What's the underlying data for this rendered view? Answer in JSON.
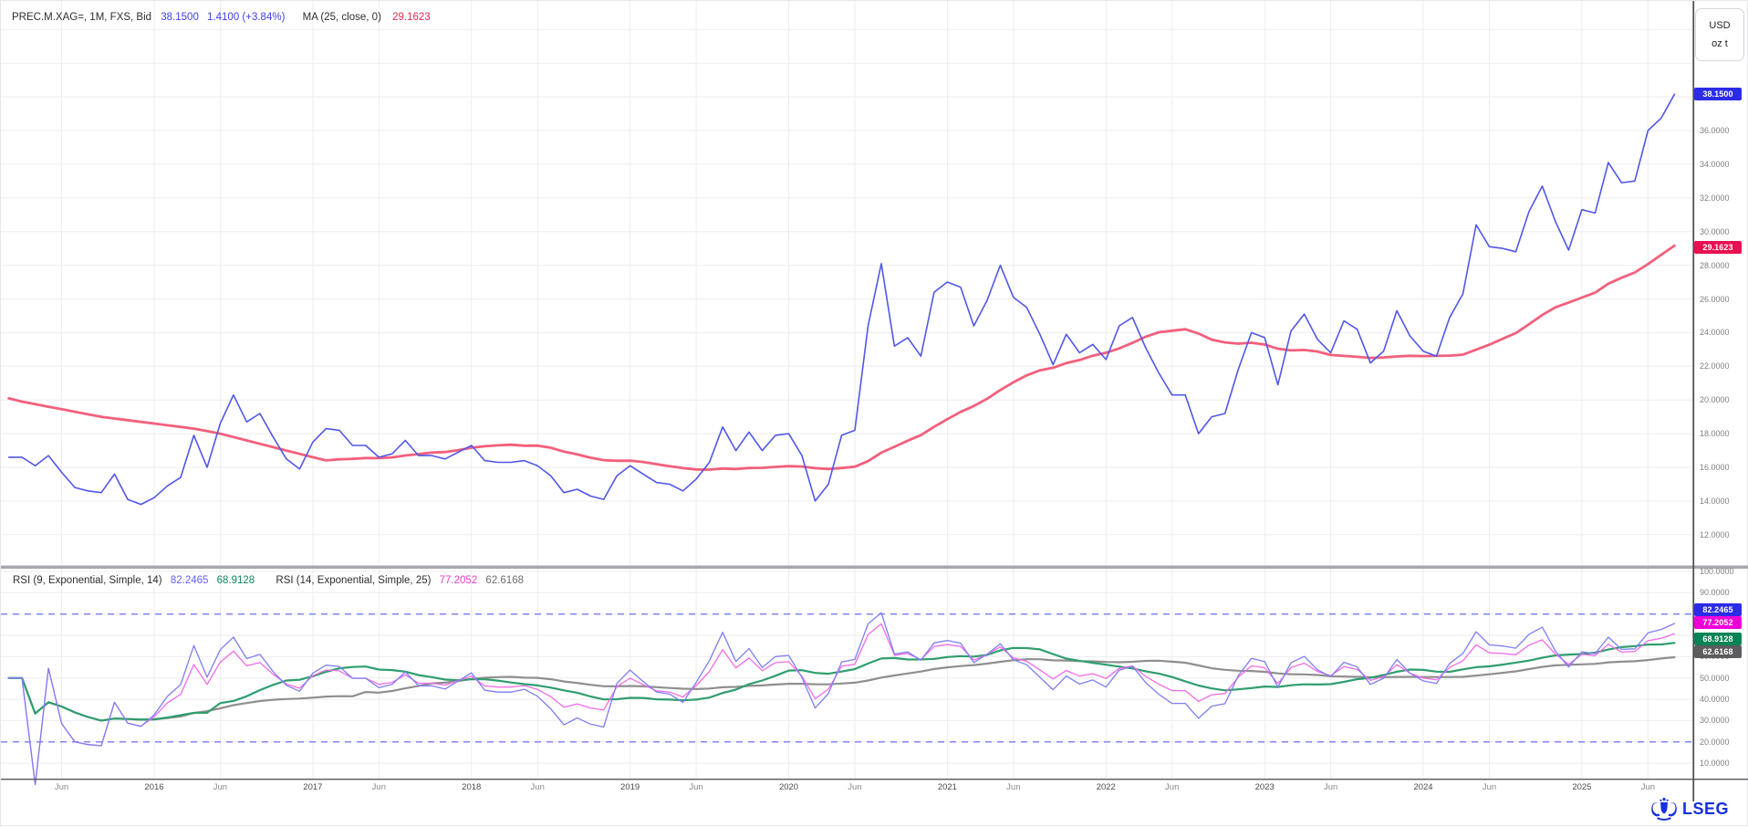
{
  "header": {
    "instrument": "PREC.M.XAG=, 1M, FXS, Bid",
    "last": "38.1500",
    "change": "1.4100 (+3.84%)",
    "ma_label": "MA (25, close, 0)",
    "ma_value": "29.1623"
  },
  "rsi_header": {
    "rsi9_label": "RSI (9, Exponential, Simple, 14)",
    "rsi9_value": "82.2465",
    "rsi9_ma_value": "68.9128",
    "rsi14_label": "RSI (14, Exponential, Simple, 25)",
    "rsi14_value": "77.2052",
    "rsi14_ma_value": "62.6168"
  },
  "badges": {
    "last": "38.1500",
    "ma": "29.1623",
    "rsi9": "82.2465",
    "rsi14": "77.2052",
    "rsi9_ma": "68.9128",
    "rsi14_ma": "62.6168"
  },
  "axis": {
    "unit_top": "USD",
    "unit_bottom": "oz t",
    "price_ticks": [
      "36.0000",
      "34.0000",
      "32.0000",
      "30.0000",
      "28.0000",
      "26.0000",
      "24.0000",
      "22.0000",
      "20.0000",
      "18.0000",
      "16.0000",
      "14.0000",
      "12.0000"
    ],
    "rsi_ticks": [
      "100.0000",
      "90.0000",
      "60.0000",
      "50.0000",
      "40.0000",
      "30.0000",
      "20.0000",
      "10.0000"
    ],
    "x_ticks": [
      {
        "label": "Jun",
        "i": 4,
        "kind": "month"
      },
      {
        "label": "2016",
        "i": 11,
        "kind": "year"
      },
      {
        "label": "Jun",
        "i": 16,
        "kind": "month"
      },
      {
        "label": "2017",
        "i": 23,
        "kind": "year"
      },
      {
        "label": "Jun",
        "i": 28,
        "kind": "month"
      },
      {
        "label": "2018",
        "i": 35,
        "kind": "year"
      },
      {
        "label": "Jun",
        "i": 40,
        "kind": "month"
      },
      {
        "label": "2019",
        "i": 47,
        "kind": "year"
      },
      {
        "label": "Jun",
        "i": 52,
        "kind": "month"
      },
      {
        "label": "2020",
        "i": 59,
        "kind": "year"
      },
      {
        "label": "Jun",
        "i": 64,
        "kind": "month"
      },
      {
        "label": "2021",
        "i": 71,
        "kind": "year"
      },
      {
        "label": "Jun",
        "i": 76,
        "kind": "month"
      },
      {
        "label": "2022",
        "i": 83,
        "kind": "year"
      },
      {
        "label": "Jun",
        "i": 88,
        "kind": "month"
      },
      {
        "label": "2023",
        "i": 95,
        "kind": "year"
      },
      {
        "label": "Jun",
        "i": 100,
        "kind": "month"
      },
      {
        "label": "2024",
        "i": 107,
        "kind": "year"
      },
      {
        "label": "Jun",
        "i": 112,
        "kind": "month"
      },
      {
        "label": "2025",
        "i": 119,
        "kind": "year"
      },
      {
        "label": "Jun",
        "i": 124,
        "kind": "month"
      }
    ]
  },
  "logo": {
    "text": "LSEG"
  },
  "colors": {
    "price_line": "#5157e8",
    "ma_line": "#f2607c",
    "rsi9_line": "#7e7ef2",
    "rsi9_ma_line": "#2f9e6e",
    "rsi14_line": "#f26ce6",
    "rsi14_ma_line": "#8f8f8f",
    "band_dashed": "#8484f4",
    "grid": "#ededf2",
    "divider": "#a8a8ac",
    "axis_line": "#4a4a4e",
    "badge_blue": "#2b2be8",
    "badge_crimson": "#e81050",
    "badge_magenta": "#ee00d8",
    "badge_green": "#068455",
    "badge_gray": "#5c5c5e",
    "lseg_blue": "#1530e0"
  },
  "chart_data": [
    {
      "type": "line",
      "panel": "price",
      "title": "PREC.M.XAG=, 1M, FXS, Bid",
      "interval": "monthly",
      "x_start": "2015-02",
      "x_end": "2025-08",
      "ylabel": "USD / oz t",
      "ylim": [
        10,
        43.5
      ],
      "y_grid_step": 2,
      "grid": true,
      "series": [
        {
          "name": "PREC.M.XAG= Bid close",
          "color": "#5157e8",
          "last_value": 38.15,
          "values": [
            16.6,
            16.6,
            16.1,
            16.7,
            15.7,
            14.8,
            14.6,
            14.5,
            15.6,
            14.1,
            13.8,
            14.2,
            14.9,
            15.4,
            17.9,
            16.0,
            18.6,
            20.3,
            18.7,
            19.2,
            17.8,
            16.5,
            15.9,
            17.5,
            18.3,
            18.2,
            17.3,
            17.3,
            16.6,
            16.8,
            17.6,
            16.7,
            16.7,
            16.5,
            16.9,
            17.3,
            16.4,
            16.3,
            16.3,
            16.4,
            16.1,
            15.5,
            14.5,
            14.7,
            14.3,
            14.1,
            15.5,
            16.1,
            15.6,
            15.1,
            15.0,
            14.6,
            15.3,
            16.3,
            18.4,
            17.0,
            18.1,
            17.0,
            17.9,
            18.0,
            16.7,
            14.0,
            15.0,
            17.9,
            18.2,
            24.4,
            28.1,
            23.2,
            23.7,
            22.6,
            26.4,
            27.0,
            26.7,
            24.4,
            25.9,
            28.0,
            26.1,
            25.5,
            23.9,
            22.1,
            23.9,
            22.8,
            23.3,
            22.4,
            24.4,
            24.9,
            23.1,
            21.6,
            20.3,
            20.3,
            18.0,
            19.0,
            19.2,
            21.8,
            24.0,
            23.7,
            20.9,
            24.1,
            25.1,
            23.6,
            22.8,
            24.7,
            24.2,
            22.2,
            22.9,
            25.3,
            23.8,
            22.9,
            22.6,
            24.9,
            26.3,
            30.4,
            29.1,
            29.0,
            28.8,
            31.2,
            32.7,
            30.6,
            28.9,
            31.3,
            31.1,
            34.1,
            32.9,
            33.0,
            36.0,
            36.74,
            38.15
          ]
        },
        {
          "name": "MA (25, close, 0)",
          "color": "#f2607c",
          "derivation": "25-period simple moving average of close",
          "last_value": 29.1623,
          "lead_in_values": [
            20.1,
            19.9,
            19.75,
            19.6,
            19.45,
            19.3,
            19.15,
            19.0,
            18.9,
            18.8,
            18.7,
            18.6,
            18.5,
            18.4,
            18.3,
            18.15,
            18.0,
            17.8,
            17.6,
            17.4,
            17.2,
            17.0,
            16.8,
            16.6
          ]
        }
      ]
    },
    {
      "type": "line",
      "panel": "rsi",
      "title": "RSI study",
      "ylim": [
        0,
        100
      ],
      "y_grid_step": 10,
      "overbought_band": 80,
      "oversold_band": 20,
      "grid": true,
      "series": [
        {
          "name": "RSI (9, Exponential)",
          "color": "#7e7ef2",
          "derivation": "RSI period 9 exponential of close",
          "last_value": 82.2465
        },
        {
          "name": "Simple MA 14 of RSI 9",
          "color": "#2f9e6e",
          "derivation": "SMA14 of RSI9",
          "last_value": 68.9128
        },
        {
          "name": "RSI (14, Exponential)",
          "color": "#f26ce6",
          "derivation": "RSI period 14 exponential of close",
          "last_value": 77.2052
        },
        {
          "name": "Simple MA 25 of RSI 14",
          "color": "#8f8f8f",
          "derivation": "SMA25 of RSI14",
          "last_value": 62.6168
        }
      ]
    }
  ]
}
